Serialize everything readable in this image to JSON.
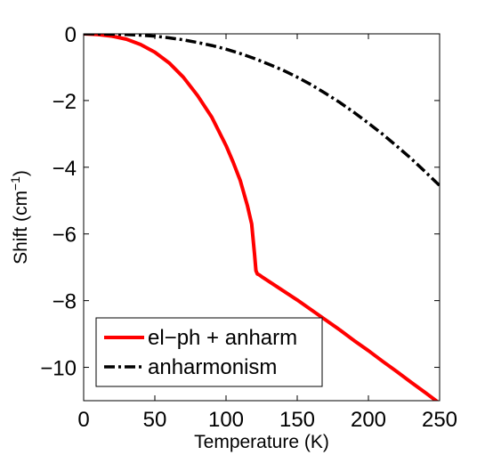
{
  "chart_data": {
    "type": "line",
    "xlabel": "Temperature (K)",
    "ylabel": "Shift (cm",
    "ylabel_sup": "−1",
    "ylabel_close": ")",
    "xlim": [
      0,
      250
    ],
    "ylim": [
      -11,
      0
    ],
    "xticks": [
      0,
      50,
      100,
      150,
      200,
      250
    ],
    "xtick_labels": [
      "0",
      "50",
      "100",
      "150",
      "200",
      "250"
    ],
    "yticks": [
      0,
      -2,
      -4,
      -6,
      -8,
      -10
    ],
    "ytick_labels": [
      "0",
      "−2",
      "−4",
      "−6",
      "−8",
      "−10"
    ],
    "grid": false,
    "legend_position": "bottom-left",
    "series": [
      {
        "name": "el−ph + anharm",
        "color": "#ff0000",
        "style": "solid",
        "x": [
          0,
          10,
          20,
          30,
          40,
          50,
          60,
          70,
          80,
          90,
          100,
          105,
          110,
          115,
          118,
          120,
          121,
          122,
          123,
          125,
          130,
          140,
          150,
          160,
          170,
          180,
          190,
          200,
          210,
          220,
          230,
          240,
          250
        ],
        "y": [
          0,
          -0.02,
          -0.07,
          -0.16,
          -0.32,
          -0.55,
          -0.87,
          -1.3,
          -1.85,
          -2.5,
          -3.35,
          -3.85,
          -4.4,
          -5.15,
          -5.7,
          -6.6,
          -7.1,
          -7.2,
          -7.22,
          -7.28,
          -7.42,
          -7.7,
          -7.98,
          -8.28,
          -8.58,
          -8.88,
          -9.2,
          -9.5,
          -9.82,
          -10.13,
          -10.45,
          -10.76,
          -11.08
        ]
      },
      {
        "name": "anharmonism",
        "color": "#000000",
        "style": "dashdot",
        "x": [
          0,
          10,
          20,
          30,
          40,
          50,
          60,
          70,
          80,
          90,
          100,
          110,
          120,
          130,
          140,
          150,
          160,
          170,
          180,
          190,
          200,
          210,
          220,
          230,
          240,
          250
        ],
        "y": [
          0,
          0,
          -0.01,
          -0.02,
          -0.04,
          -0.07,
          -0.12,
          -0.18,
          -0.26,
          -0.35,
          -0.46,
          -0.59,
          -0.74,
          -0.91,
          -1.09,
          -1.3,
          -1.53,
          -1.79,
          -2.06,
          -2.36,
          -2.68,
          -3.01,
          -3.37,
          -3.74,
          -4.14,
          -4.55
        ]
      }
    ]
  }
}
